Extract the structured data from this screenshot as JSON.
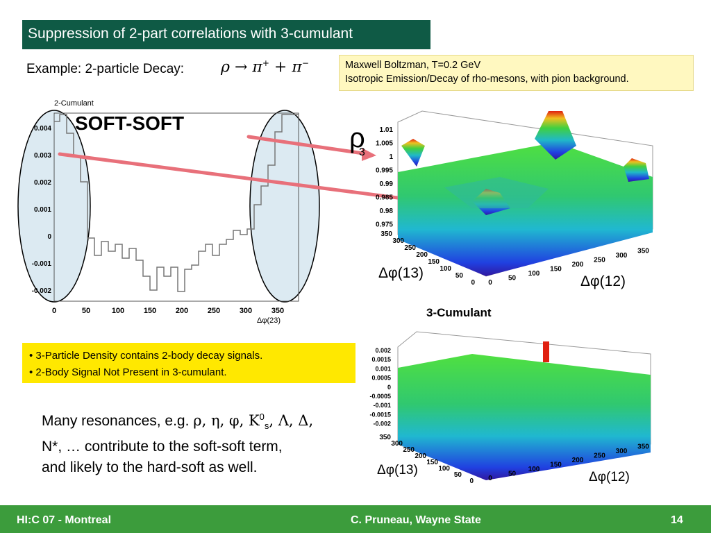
{
  "slide": {
    "title": "Suppression of 2-part correlations with 3-cumulant",
    "example_label": "Example: 2-particle Decay:",
    "formula": {
      "rho": "ρ",
      "arrow": "→",
      "pi": "π",
      "plus_sup": "+",
      "plus": "+",
      "minus_sup": "−"
    },
    "note_lines": [
      "Maxwell Boltzman, T=0.2 GeV",
      "Isotropic Emission/Decay of rho-mesons, with pion background."
    ],
    "bullets": [
      "• 3-Particle Density contains 2-body decay signals.",
      "• 2-Body Signal Not Present in 3-cumulant."
    ],
    "body": {
      "prefix": "Many resonances, e.g. ",
      "greek1": "ρ, η, φ, Κ",
      "sup": "0",
      "sub": "s",
      "greek2": ", Λ,  Δ,",
      "line2": "N*, … contribute to the soft-soft term,",
      "line3": "and likely to the hard-soft as well."
    }
  },
  "left_plot": {
    "caption": "2-Cumulant",
    "heading": "SOFT-SOFT",
    "y_ticks": [
      "0.004",
      "0.003",
      "0.002",
      "0.001",
      "0",
      "-0.001",
      "-0.002"
    ],
    "x_ticks": [
      "0",
      "50",
      "100",
      "150",
      "200",
      "250",
      "300",
      "350"
    ],
    "x_label": "Δφ(23)"
  },
  "top_plot": {
    "label": "ρ",
    "label_sub": "3",
    "z_ticks": [
      "1.01",
      "1.005",
      "1",
      "0.995",
      "0.99",
      "0.985",
      "0.98",
      "0.975"
    ],
    "axis13_ticks": [
      "350",
      "300",
      "250",
      "200",
      "150",
      "100",
      "50",
      "0"
    ],
    "axis12_ticks": [
      "0",
      "50",
      "100",
      "150",
      "200",
      "250",
      "300",
      "350"
    ],
    "axis13_label": "Δφ(13)",
    "axis12_label": "Δφ(12)"
  },
  "bottom_plot": {
    "title": "3-Cumulant",
    "z_ticks": [
      "0.002",
      "0.0015",
      "0.001",
      "0.0005",
      "0",
      "-0.0005",
      "-0.001",
      "-0.0015",
      "-0.002"
    ],
    "axis13_ticks": [
      "350",
      "300",
      "250",
      "200",
      "150",
      "100",
      "50",
      "0"
    ],
    "axis12_ticks": [
      "0",
      "50",
      "100",
      "150",
      "200",
      "250",
      "300",
      "350"
    ],
    "axis13_label": "Δφ(13)",
    "axis12_label": "Δφ(12)"
  },
  "footer": {
    "left": "HI:C 07 - Montreal",
    "center": "C. Pruneau, Wayne State",
    "page": "14"
  },
  "colors": {
    "title_bg": "#0f5a45",
    "footer_bg": "#3c9c3c",
    "note_bg": "#fff8c0",
    "bullet_bg": "#ffe800",
    "arrow": "#e8707a",
    "ellipse_fill": "#dceaf2"
  }
}
